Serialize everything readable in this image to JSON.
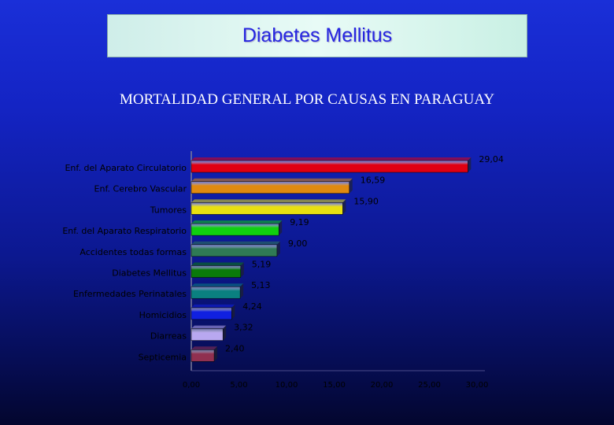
{
  "header": {
    "title": "Diabetes Mellitus",
    "subtitle": "MORTALIDAD GENERAL POR CAUSAS EN PARAGUAY"
  },
  "chart_data": {
    "type": "bar",
    "orientation": "horizontal",
    "categories": [
      "Enf. del Aparato Circulatorio",
      "Enf. Cerebro Vascular",
      "Tumores",
      "Enf. del Aparato Respiratorio",
      "Accidentes todas formas",
      "Diabetes Mellitus",
      "Enfermedades Perinatales",
      "Homicidios",
      "Diarreas",
      "Septicemia"
    ],
    "values": [
      29.04,
      16.59,
      15.9,
      9.19,
      9.0,
      5.19,
      5.13,
      4.24,
      3.32,
      2.4
    ],
    "value_labels": [
      "29,04",
      "16,59",
      "15,90",
      "9,19",
      "9,00",
      "5,19",
      "5,13",
      "4,24",
      "3,32",
      "2,40"
    ],
    "colors": [
      "#e00012",
      "#e08a10",
      "#e8e010",
      "#10d010",
      "#2f7a55",
      "#0a7a0a",
      "#0a8080",
      "#1020e0",
      "#b8a8f0",
      "#903050"
    ],
    "x_ticks": [
      "0,00",
      "5,00",
      "10,00",
      "15,00",
      "20,00",
      "25,00",
      "30,00"
    ],
    "xlim": [
      0,
      30
    ],
    "title": "",
    "xlabel": "",
    "ylabel": "",
    "grid": false,
    "legend": "none"
  }
}
